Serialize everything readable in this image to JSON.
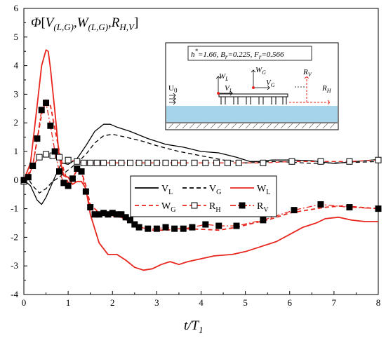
{
  "chart_data": {
    "type": "line",
    "title": "Φ[V(L,G), W(L,G), RH,V]",
    "title_parts": {
      "phi": "Φ",
      "open": "[",
      "v": "V",
      "v_sub": "(L,G)",
      "sep1": ",",
      "w": "W",
      "w_sub": "(L,G)",
      "sep2": ",",
      "r": "R",
      "r_sub": "H,V",
      "close": "]"
    },
    "xlabel": "t/T1",
    "xlabel_parts": {
      "main": "t/T",
      "sub": "1"
    },
    "xlim": [
      0,
      8
    ],
    "ylim": [
      -4,
      6
    ],
    "xticks": [
      0,
      1,
      2,
      3,
      4,
      5,
      6,
      7,
      8
    ],
    "yticks": [
      -4,
      -3,
      -2,
      -1,
      0,
      1,
      2,
      3,
      4,
      5,
      6
    ],
    "grid": false,
    "legend_position": "center-right",
    "series": [
      {
        "name": "VL",
        "label": {
          "main": "V",
          "sub": "L"
        },
        "style": "solid",
        "color": "#000000",
        "x": [
          0,
          0.15,
          0.3,
          0.4,
          0.5,
          0.6,
          0.7,
          0.85,
          1.0,
          1.2,
          1.4,
          1.6,
          1.8,
          1.95,
          2.1,
          2.4,
          2.8,
          3.2,
          3.6,
          4.0,
          4.4,
          4.8,
          5.1,
          5.3,
          5.6,
          6.0,
          6.5,
          7.0,
          7.5,
          8.0
        ],
        "y": [
          0,
          -0.2,
          -0.7,
          -0.85,
          -0.6,
          -0.25,
          0.1,
          0.6,
          0.55,
          0.75,
          1.2,
          1.7,
          1.95,
          1.95,
          1.85,
          1.7,
          1.45,
          1.25,
          1.15,
          1.0,
          0.95,
          0.8,
          0.65,
          0.65,
          0.7,
          0.7,
          0.68,
          0.58,
          0.65,
          0.72
        ]
      },
      {
        "name": "VG",
        "label": {
          "main": "V",
          "sub": "G"
        },
        "style": "dashed",
        "color": "#000000",
        "x": [
          0,
          0.1,
          0.2,
          0.35,
          0.5,
          0.65,
          0.8,
          1.0,
          1.2,
          1.4,
          1.6,
          1.8,
          2.0,
          2.3,
          2.7,
          3.0,
          3.5,
          4.0,
          4.5,
          5.0,
          5.3,
          5.6,
          6.0,
          6.5,
          7.0,
          7.5,
          8.0
        ],
        "y": [
          0,
          0.05,
          -0.2,
          -0.45,
          -0.3,
          -0.05,
          0.1,
          0.35,
          0.6,
          0.9,
          1.3,
          1.55,
          1.6,
          1.5,
          1.35,
          1.2,
          1.0,
          0.85,
          0.7,
          0.6,
          0.62,
          0.65,
          0.63,
          0.58,
          0.6,
          0.62,
          0.65
        ]
      },
      {
        "name": "WL",
        "label": {
          "main": "W",
          "sub": "L"
        },
        "style": "solid",
        "color": "#e8261e",
        "x": [
          0,
          0.15,
          0.3,
          0.4,
          0.5,
          0.55,
          0.6,
          0.7,
          0.8,
          0.9,
          1.0,
          1.1,
          1.2,
          1.3,
          1.4,
          1.5,
          1.7,
          1.9,
          2.1,
          2.3,
          2.5,
          2.7,
          2.9,
          3.1,
          3.3,
          3.5,
          3.7,
          4.0,
          4.3,
          4.7,
          5.0,
          5.3,
          5.7,
          6.0,
          6.3,
          6.6,
          6.8,
          7.1,
          7.4,
          7.7,
          8.0
        ],
        "y": [
          0,
          0.6,
          2.6,
          4.0,
          4.55,
          4.5,
          3.9,
          2.4,
          0.8,
          0.15,
          0.1,
          -0.15,
          -0.05,
          -0.05,
          -0.3,
          -1.2,
          -2.2,
          -2.6,
          -2.6,
          -2.8,
          -3.05,
          -3.15,
          -3.1,
          -2.95,
          -2.85,
          -2.95,
          -2.85,
          -2.75,
          -2.65,
          -2.6,
          -2.5,
          -2.35,
          -2.15,
          -1.9,
          -1.65,
          -1.5,
          -1.35,
          -1.3,
          -1.4,
          -1.45,
          -1.45
        ]
      },
      {
        "name": "WG",
        "label": {
          "main": "W",
          "sub": "G"
        },
        "style": "dashed",
        "color": "#e8261e",
        "x": [
          0,
          0.1,
          0.2,
          0.3,
          0.4,
          0.5,
          0.6,
          0.7,
          0.8,
          0.9,
          1.0,
          1.1,
          1.2,
          1.3,
          1.4,
          1.5,
          1.7,
          1.9,
          2.2,
          2.5,
          2.8,
          3.2,
          3.6,
          4.0,
          4.4,
          4.8,
          5.2,
          5.6,
          6.0,
          6.4,
          6.8,
          7.2,
          7.6,
          8.0
        ],
        "y": [
          0,
          0.1,
          0.5,
          1.4,
          2.3,
          2.8,
          2.6,
          1.8,
          1.0,
          0.35,
          -0.1,
          0.05,
          0.35,
          0.3,
          -0.2,
          -0.85,
          -1.15,
          -1.25,
          -1.3,
          -1.55,
          -1.75,
          -1.75,
          -1.7,
          -1.72,
          -1.75,
          -1.65,
          -1.5,
          -1.35,
          -1.15,
          -1.05,
          -0.95,
          -0.9,
          -0.95,
          -1.0
        ]
      },
      {
        "name": "RH",
        "label": {
          "main": "R",
          "sub": "H"
        },
        "style": "dashed",
        "marker": "hollow-square",
        "color": "#000000",
        "x": [
          0,
          0.2,
          0.35,
          0.5,
          0.65,
          0.8,
          1.0,
          1.2,
          1.35,
          1.5,
          1.65,
          1.8,
          2.0,
          2.2,
          2.4,
          2.6,
          2.8,
          3.0,
          3.2,
          3.4,
          3.6,
          3.85,
          4.1,
          4.35,
          4.6,
          4.85,
          5.4,
          6.05,
          6.7,
          7.35,
          8.0
        ],
        "y": [
          -0.05,
          0.5,
          0.8,
          0.9,
          0.85,
          0.8,
          0.7,
          0.65,
          0.6,
          0.6,
          0.6,
          0.6,
          0.6,
          0.6,
          0.6,
          0.6,
          0.6,
          0.6,
          0.6,
          0.6,
          0.6,
          0.6,
          0.6,
          0.6,
          0.6,
          0.6,
          0.6,
          0.65,
          0.65,
          0.65,
          0.7
        ]
      },
      {
        "name": "RV",
        "label": {
          "main": "R",
          "sub": "V"
        },
        "style": "dashdot",
        "marker": "filled-square",
        "color": "#000000",
        "x": [
          0.0,
          0.1,
          0.2,
          0.3,
          0.4,
          0.5,
          0.6,
          0.7,
          0.8,
          0.9,
          1.0,
          1.1,
          1.2,
          1.3,
          1.4,
          1.5,
          1.6,
          1.7,
          1.8,
          1.9,
          2.0,
          2.1,
          2.2,
          2.3,
          2.4,
          2.5,
          2.6,
          2.8,
          3.0,
          3.2,
          3.4,
          3.6,
          3.8,
          4.1,
          4.4,
          4.8,
          5.4,
          6.1,
          6.7,
          7.35,
          8.0
        ],
        "y": [
          0,
          0.1,
          0.5,
          1.45,
          2.45,
          2.7,
          1.9,
          1.0,
          0.3,
          -0.1,
          -0.2,
          0.05,
          0.4,
          0.3,
          -0.4,
          -0.95,
          -1.2,
          -1.2,
          -1.15,
          -1.2,
          -1.15,
          -1.2,
          -1.2,
          -1.3,
          -1.4,
          -1.55,
          -1.65,
          -1.7,
          -1.7,
          -1.65,
          -1.7,
          -1.7,
          -1.65,
          -1.55,
          -1.6,
          -1.6,
          -1.4,
          -1.05,
          -0.85,
          -0.95,
          -1.0
        ]
      }
    ],
    "inset": {
      "parameters": {
        "h_label": "h",
        "h_sup": "*",
        "h_value": "=1.66, ",
        "br_label": "B",
        "br_sub": "r",
        "br_value": "=0.225, ",
        "fr_label": "F",
        "fr_sub": "r",
        "fr_value": "=0.566"
      },
      "u0": {
        "main": "U",
        "sub": "0"
      },
      "labels": {
        "wl": {
          "main": "W",
          "sub": "L"
        },
        "vl": {
          "main": "V",
          "sub": "L"
        },
        "wg": {
          "main": "W",
          "sub": "G"
        },
        "vg": {
          "main": "V",
          "sub": "G"
        },
        "rv": {
          "main": "R",
          "sub": "V"
        },
        "rh": {
          "main": "R",
          "sub": "H"
        }
      },
      "water_color": "#a6d4ea",
      "arrow_color": "#e8261e"
    }
  }
}
